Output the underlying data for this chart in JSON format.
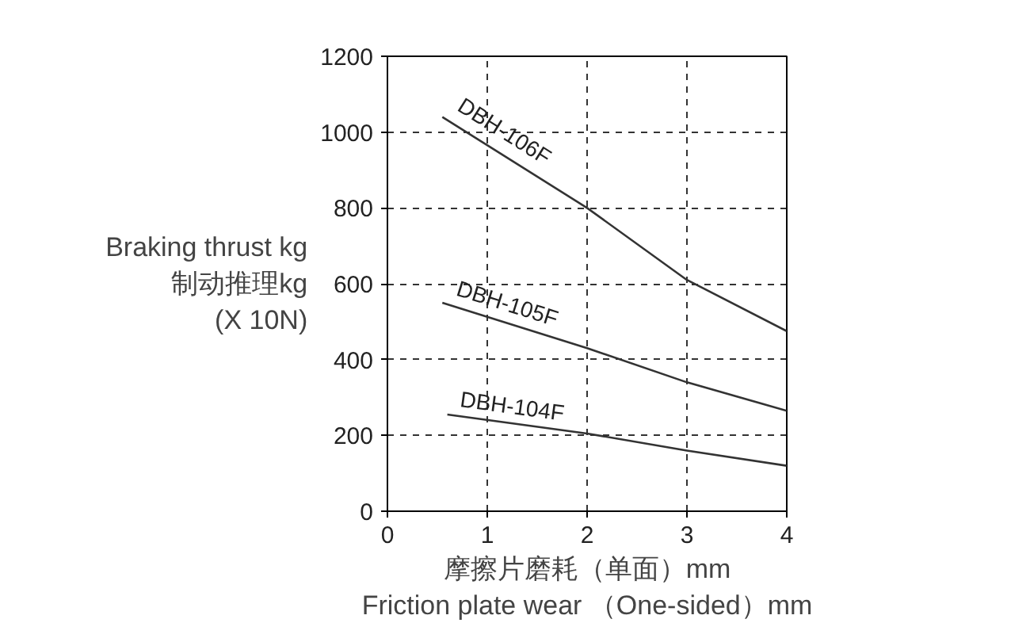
{
  "chart_data": {
    "type": "line",
    "ylabel": "Braking thrust kg\n制动推理kg\n(X 10N)",
    "xlabel": "摩擦片磨耗（单面）mm\nFriction plate wear （One-sided）mm",
    "xlim": [
      0,
      4
    ],
    "xticks": [
      0,
      1,
      2,
      3,
      4
    ],
    "ylim": [
      0,
      1200
    ],
    "yticks": [
      0,
      200,
      400,
      600,
      800,
      1000,
      1200
    ],
    "grid": true,
    "line_style": "solid",
    "marker": "none",
    "series": [
      {
        "name": "DBH-106F",
        "color": "#333333",
        "x": [
          0.55,
          2,
          3,
          4
        ],
        "values": [
          1040,
          800,
          610,
          475
        ]
      },
      {
        "name": "DBH-105F",
        "color": "#333333",
        "x": [
          0.55,
          2,
          3,
          4
        ],
        "values": [
          550,
          430,
          340,
          265
        ]
      },
      {
        "name": "DBH-104F",
        "color": "#333333",
        "x": [
          0.6,
          2,
          3,
          4
        ],
        "values": [
          255,
          205,
          160,
          120
        ]
      }
    ]
  }
}
